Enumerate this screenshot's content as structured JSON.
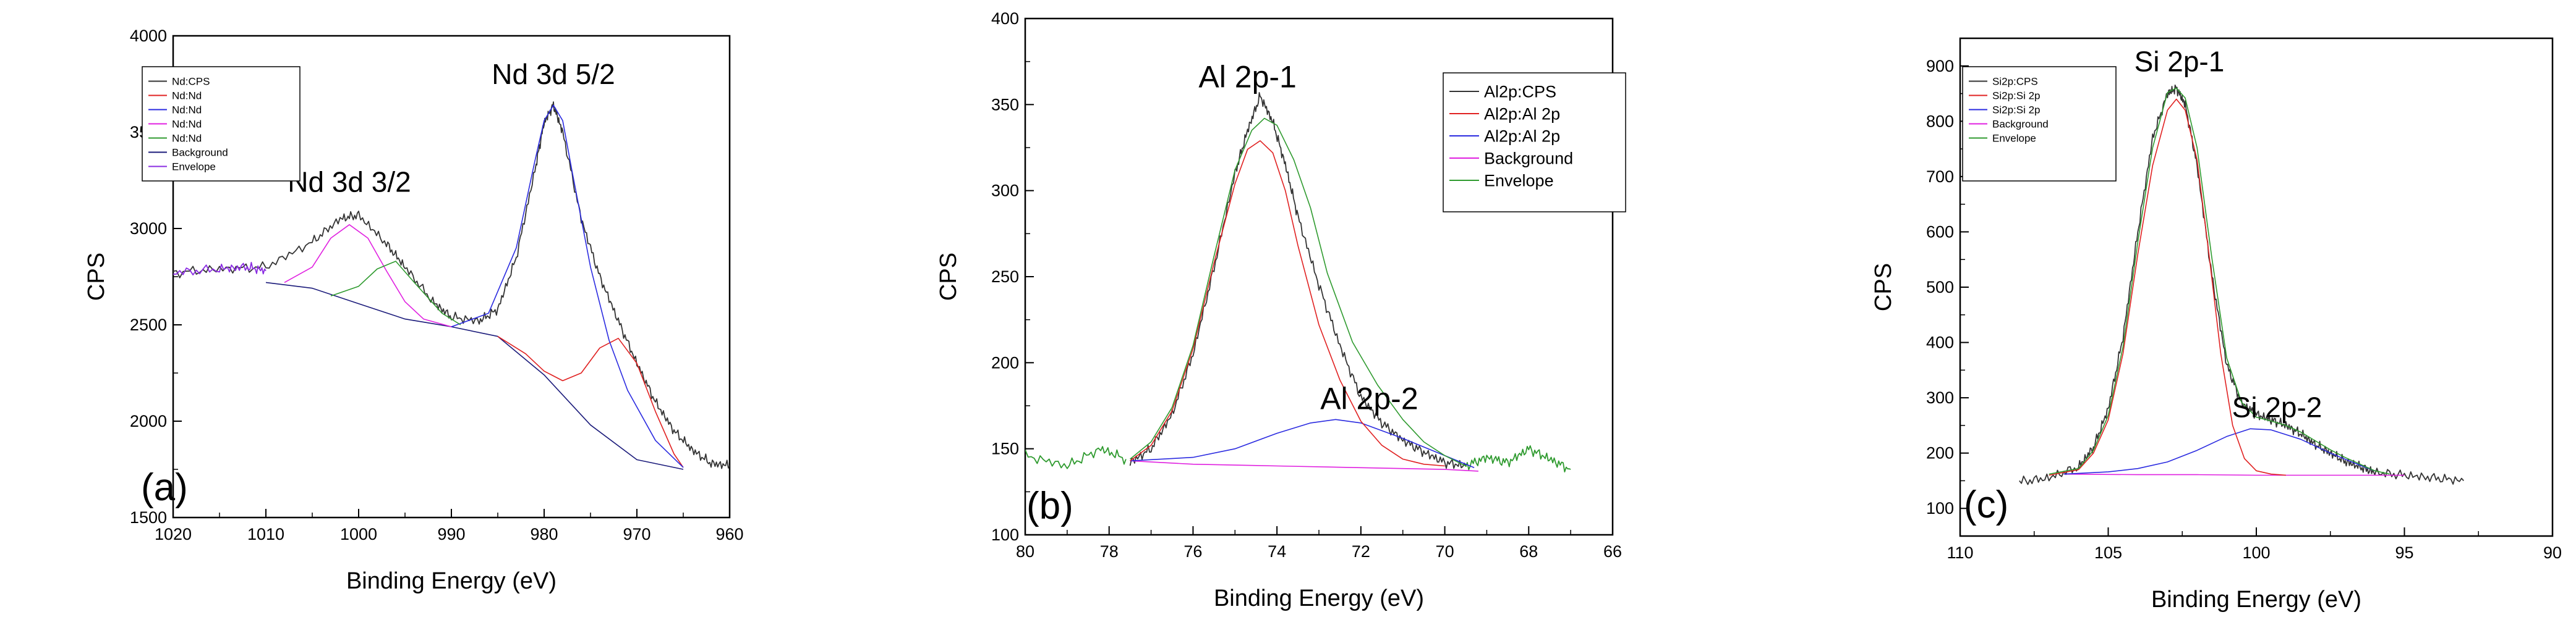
{
  "chart_data": [
    {
      "type": "line",
      "panel_label": "(a)",
      "xlabel": "Binding Energy (eV)",
      "ylabel": "CPS",
      "xlim": [
        1020,
        960
      ],
      "ylim": [
        1500,
        4000
      ],
      "xticks": [
        1020,
        1010,
        1000,
        990,
        980,
        970,
        960
      ],
      "yticks": [
        1500,
        2000,
        2500,
        3000,
        3500,
        4000
      ],
      "annotations": [
        {
          "text": "Nd 3d 3/2",
          "x": 1001,
          "y": 3190
        },
        {
          "text": "Nd 3d 5/2",
          "x": 979,
          "y": 3750
        }
      ],
      "legend_position": "top-left",
      "legend": [
        {
          "name": "Nd:CPS",
          "color": "#333333"
        },
        {
          "name": "Nd:Nd",
          "color": "#e02020"
        },
        {
          "name": "Nd:Nd",
          "color": "#2a2ae0"
        },
        {
          "name": "Nd:Nd",
          "color": "#e020e0"
        },
        {
          "name": "Nd:Nd",
          "color": "#2e9a2e"
        },
        {
          "name": "Background",
          "color": "#1a1a7a"
        },
        {
          "name": "Envelope",
          "color": "#8a2be2"
        }
      ],
      "series": [
        {
          "name": "Nd:CPS",
          "color": "#333333",
          "noisy": true,
          "x": [
            1020,
            1015,
            1010,
            1005,
            1002,
            1000,
            997,
            995,
            992,
            990,
            987,
            985,
            983,
            981,
            980,
            979,
            978,
            976,
            974,
            972,
            970,
            968,
            966,
            964,
            962,
            960
          ],
          "y": [
            2770,
            2790,
            2800,
            2930,
            3050,
            3070,
            2920,
            2800,
            2620,
            2540,
            2520,
            2580,
            2850,
            3300,
            3550,
            3640,
            3500,
            3050,
            2750,
            2520,
            2300,
            2100,
            1950,
            1850,
            1780,
            1770
          ]
        },
        {
          "name": "Envelope",
          "color": "#8a2be2",
          "noisy": true,
          "x": [
            1020,
            1015,
            1012,
            1010
          ],
          "y": [
            2770,
            2790,
            2800,
            2780
          ]
        },
        {
          "name": "Background",
          "color": "#1a1a7a",
          "x": [
            1010,
            1005,
            1000,
            995,
            990,
            985,
            980,
            975,
            970,
            965
          ],
          "y": [
            2720,
            2690,
            2610,
            2530,
            2490,
            2440,
            2240,
            1980,
            1800,
            1750
          ]
        },
        {
          "name": "Nd:Nd",
          "color": "#e02020",
          "x": [
            985,
            982,
            980,
            978,
            976,
            974,
            972,
            970,
            968,
            966,
            965
          ],
          "y": [
            2440,
            2350,
            2260,
            2210,
            2250,
            2380,
            2430,
            2300,
            2050,
            1830,
            1760
          ]
        },
        {
          "name": "Nd:Nd",
          "color": "#2a2ae0",
          "x": [
            990,
            986,
            983,
            981,
            980,
            979,
            978,
            977,
            975,
            973,
            971,
            968,
            965
          ],
          "y": [
            2490,
            2560,
            2900,
            3350,
            3560,
            3640,
            3560,
            3300,
            2800,
            2420,
            2160,
            1900,
            1760
          ]
        },
        {
          "name": "Nd:Nd",
          "color": "#e020e0",
          "x": [
            1008,
            1005,
            1003,
            1001,
            999,
            997,
            995,
            993,
            990
          ],
          "y": [
            2720,
            2800,
            2950,
            3020,
            2950,
            2780,
            2620,
            2530,
            2490
          ]
        },
        {
          "name": "Nd:Nd",
          "color": "#2e9a2e",
          "x": [
            1003,
            1000,
            998,
            996,
            994,
            991,
            989
          ],
          "y": [
            2650,
            2700,
            2790,
            2830,
            2720,
            2560,
            2500
          ]
        }
      ]
    },
    {
      "type": "line",
      "panel_label": "(b)",
      "xlabel": "Binding Energy (eV)",
      "ylabel": "CPS",
      "xlim": [
        80,
        66
      ],
      "ylim": [
        100,
        400
      ],
      "xticks": [
        80,
        78,
        76,
        74,
        72,
        70,
        68,
        66
      ],
      "yticks": [
        100,
        150,
        200,
        250,
        300,
        350,
        400
      ],
      "annotations": [
        {
          "text": "Al 2p-1",
          "x": 74.7,
          "y": 360
        },
        {
          "text": "Al 2p-2",
          "x": 71.8,
          "y": 173
        }
      ],
      "legend_position": "top-right",
      "legend": [
        {
          "name": "Al2p:CPS",
          "color": "#333333"
        },
        {
          "name": "Al2p:Al 2p",
          "color": "#e02020"
        },
        {
          "name": "Al2p:Al 2p",
          "color": "#2a2ae0"
        },
        {
          "name": "Background",
          "color": "#e020e0"
        },
        {
          "name": "Envelope",
          "color": "#2e9a2e"
        }
      ],
      "series": [
        {
          "name": "Al2p:CPS",
          "color": "#333333",
          "noisy": true,
          "x": [
            77.5,
            77,
            76.5,
            76,
            75.5,
            75,
            74.7,
            74.4,
            74.1,
            73.8,
            73.5,
            73,
            72.5,
            72,
            71.5,
            71,
            70.5,
            70,
            69.5
          ],
          "y": [
            142,
            150,
            170,
            205,
            255,
            310,
            335,
            355,
            340,
            315,
            285,
            245,
            210,
            180,
            165,
            155,
            148,
            142,
            140
          ]
        },
        {
          "name": "Noise",
          "color": "#2e9a2e",
          "noisy": true,
          "x": [
            80,
            79,
            78.2,
            77.6
          ],
          "y": [
            146,
            140,
            150,
            144
          ]
        },
        {
          "name": "Noise",
          "color": "#2e9a2e",
          "noisy": true,
          "x": [
            69.5,
            69,
            68.5,
            68,
            67.5,
            67
          ],
          "y": [
            140,
            145,
            142,
            150,
            144,
            138
          ]
        },
        {
          "name": "Background",
          "color": "#e020e0",
          "x": [
            77.5,
            76,
            74,
            72,
            70,
            69.2
          ],
          "y": [
            143,
            141,
            140,
            139,
            138,
            137
          ]
        },
        {
          "name": "Al2p:Al 2p",
          "color": "#2a2ae0",
          "x": [
            77.5,
            76,
            75,
            74,
            73.2,
            72.6,
            72,
            71,
            70,
            69.3
          ],
          "y": [
            143,
            145,
            150,
            159,
            165,
            167,
            165,
            156,
            146,
            139
          ]
        },
        {
          "name": "Al2p:Al 2p",
          "color": "#e02020",
          "x": [
            77.5,
            77,
            76.5,
            76,
            75.5,
            75,
            74.7,
            74.4,
            74.1,
            73.8,
            73.5,
            73,
            72.5,
            72,
            71.5,
            71,
            70.5,
            70
          ],
          "y": [
            143,
            152,
            172,
            208,
            258,
            304,
            324,
            329,
            322,
            300,
            268,
            222,
            190,
            166,
            152,
            144,
            141,
            140
          ]
        },
        {
          "name": "Envelope",
          "color": "#2e9a2e",
          "x": [
            77.5,
            77,
            76.5,
            76,
            75.5,
            75,
            74.6,
            74.3,
            74,
            73.6,
            73.2,
            72.8,
            72.2,
            71.6,
            71,
            70.5,
            70,
            69.5
          ],
          "y": [
            144,
            154,
            174,
            210,
            262,
            312,
            335,
            342,
            338,
            318,
            290,
            252,
            212,
            187,
            167,
            154,
            146,
            140
          ]
        }
      ]
    },
    {
      "type": "line",
      "panel_label": "(c)",
      "xlabel": "Binding Energy (eV)",
      "ylabel": "CPS",
      "xlim": [
        110,
        90
      ],
      "ylim": [
        50,
        950
      ],
      "xticks": [
        110,
        105,
        100,
        95,
        90
      ],
      "yticks": [
        100,
        200,
        300,
        400,
        500,
        600,
        700,
        800,
        900
      ],
      "annotations": [
        {
          "text": "Si 2p-1",
          "x": 102.6,
          "y": 890
        },
        {
          "text": "Si 2p-2",
          "x": 99.3,
          "y": 265
        }
      ],
      "legend_position": "top-left",
      "legend": [
        {
          "name": "Si2p:CPS",
          "color": "#333333"
        },
        {
          "name": "Si2p:Si 2p",
          "color": "#e02020"
        },
        {
          "name": "Si2p:Si 2p",
          "color": "#2a2ae0"
        },
        {
          "name": "Background",
          "color": "#e020e0"
        },
        {
          "name": "Envelope",
          "color": "#2e9a2e"
        }
      ],
      "series": [
        {
          "name": "Si2p:CPS",
          "color": "#333333",
          "noisy": true,
          "x": [
            108,
            107,
            106,
            105.5,
            105,
            104.5,
            104,
            103.5,
            103,
            102.7,
            102.4,
            102,
            101.5,
            101,
            100.5,
            100,
            99.5,
            99,
            98.5,
            98,
            97.5,
            97,
            96.5,
            96,
            95,
            94,
            93
          ],
          "y": [
            148,
            155,
            175,
            210,
            280,
            410,
            600,
            770,
            850,
            860,
            830,
            720,
            520,
            360,
            290,
            270,
            260,
            250,
            235,
            215,
            200,
            185,
            175,
            165,
            160,
            155,
            150
          ]
        },
        {
          "name": "Background",
          "color": "#e020e0",
          "x": [
            106.5,
            104,
            102,
            100,
            98,
            96,
            95
          ],
          "y": [
            162,
            161,
            161,
            160,
            160,
            160,
            160
          ]
        },
        {
          "name": "Si2p:Si 2p",
          "color": "#2a2ae0",
          "x": [
            106.5,
            105,
            104,
            103,
            102,
            101,
            100.2,
            99.5,
            98.5,
            97.5,
            96.5,
            96
          ],
          "y": [
            162,
            166,
            172,
            184,
            205,
            230,
            244,
            242,
            225,
            200,
            178,
            168
          ]
        },
        {
          "name": "Si2p:Si 2p",
          "color": "#e02020",
          "x": [
            107,
            106,
            105.5,
            105,
            104.5,
            104,
            103.5,
            103,
            102.7,
            102.4,
            102,
            101.6,
            101.2,
            100.8,
            100.4,
            100,
            99.5,
            99
          ],
          "y": [
            160,
            170,
            200,
            260,
            380,
            560,
            720,
            820,
            840,
            820,
            730,
            560,
            380,
            250,
            190,
            168,
            162,
            160
          ]
        },
        {
          "name": "Envelope",
          "color": "#2e9a2e",
          "x": [
            107,
            106,
            105.5,
            105,
            104.5,
            104,
            103.5,
            103,
            102.7,
            102.4,
            102,
            101.5,
            101,
            100.5,
            100,
            99.5,
            99,
            98.5,
            98,
            97.5,
            97,
            96.5,
            96,
            95.5
          ],
          "y": [
            162,
            172,
            205,
            268,
            392,
            582,
            752,
            852,
            860,
            842,
            752,
            552,
            372,
            292,
            265,
            258,
            250,
            238,
            222,
            206,
            192,
            180,
            168,
            162
          ]
        }
      ]
    }
  ]
}
